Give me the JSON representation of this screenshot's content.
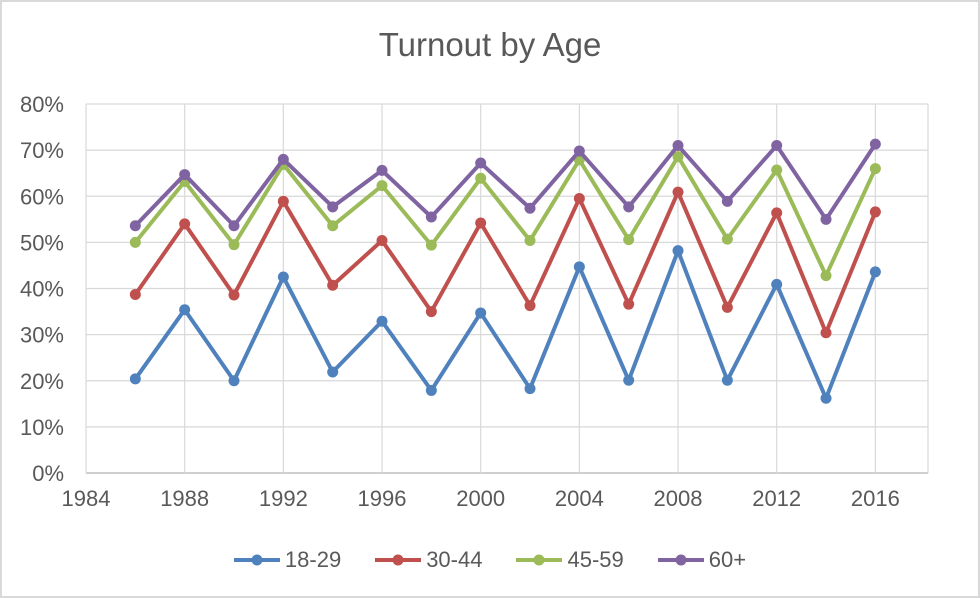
{
  "title": "Turnout by Age",
  "colors": {
    "background": "#FFFFFF",
    "frame_border": "#D9D9D9",
    "gridline": "#D9D9D9",
    "axis_line": "#BFBFBF",
    "text": "#595959",
    "series_blue": "#4F81BD",
    "series_red": "#C0504D",
    "series_green": "#9BBB59",
    "series_purple": "#8064A2"
  },
  "chart_data": {
    "type": "line",
    "title": "Turnout by Age",
    "xlabel": "",
    "ylabel": "",
    "xlim": [
      1984,
      2018
    ],
    "ylim": [
      0,
      80
    ],
    "grid": true,
    "legend_position": "bottom",
    "x": [
      1986,
      1988,
      1990,
      1992,
      1994,
      1996,
      1998,
      2000,
      2002,
      2004,
      2006,
      2008,
      2010,
      2012,
      2014,
      2016
    ],
    "x_tick_labels": [
      "1984",
      "1988",
      "1992",
      "1996",
      "2000",
      "2004",
      "2008",
      "2012",
      "2016"
    ],
    "x_tick_years": [
      1984,
      1988,
      1992,
      1996,
      2000,
      2004,
      2008,
      2012,
      2016
    ],
    "y_tick_labels": [
      "0%",
      "10%",
      "20%",
      "30%",
      "40%",
      "50%",
      "60%",
      "70%",
      "80%"
    ],
    "y_tick_values": [
      0,
      10,
      20,
      30,
      40,
      50,
      60,
      70,
      80
    ],
    "series": [
      {
        "name": "18-29",
        "color": "#4F81BD",
        "values": [
          20.4,
          35.4,
          20.0,
          42.5,
          21.9,
          32.9,
          17.9,
          34.7,
          18.3,
          44.7,
          20.1,
          48.2,
          20.1,
          40.9,
          16.2,
          43.6
        ]
      },
      {
        "name": "30-44",
        "color": "#C0504D",
        "values": [
          38.7,
          54.0,
          38.6,
          58.9,
          40.7,
          50.4,
          35.0,
          54.2,
          36.3,
          59.5,
          36.6,
          60.9,
          35.9,
          56.4,
          30.4,
          56.6
        ]
      },
      {
        "name": "45-59",
        "color": "#9BBB59",
        "values": [
          50.0,
          63.2,
          49.5,
          66.9,
          53.6,
          62.3,
          49.4,
          63.9,
          50.4,
          67.9,
          50.6,
          68.6,
          50.7,
          65.7,
          42.8,
          66.0
        ]
      },
      {
        "name": "60+",
        "color": "#8064A2",
        "values": [
          53.6,
          64.7,
          53.6,
          68.0,
          57.7,
          65.6,
          55.5,
          67.2,
          57.4,
          69.8,
          57.7,
          71.0,
          58.9,
          71.0,
          55.0,
          71.3
        ]
      }
    ]
  }
}
